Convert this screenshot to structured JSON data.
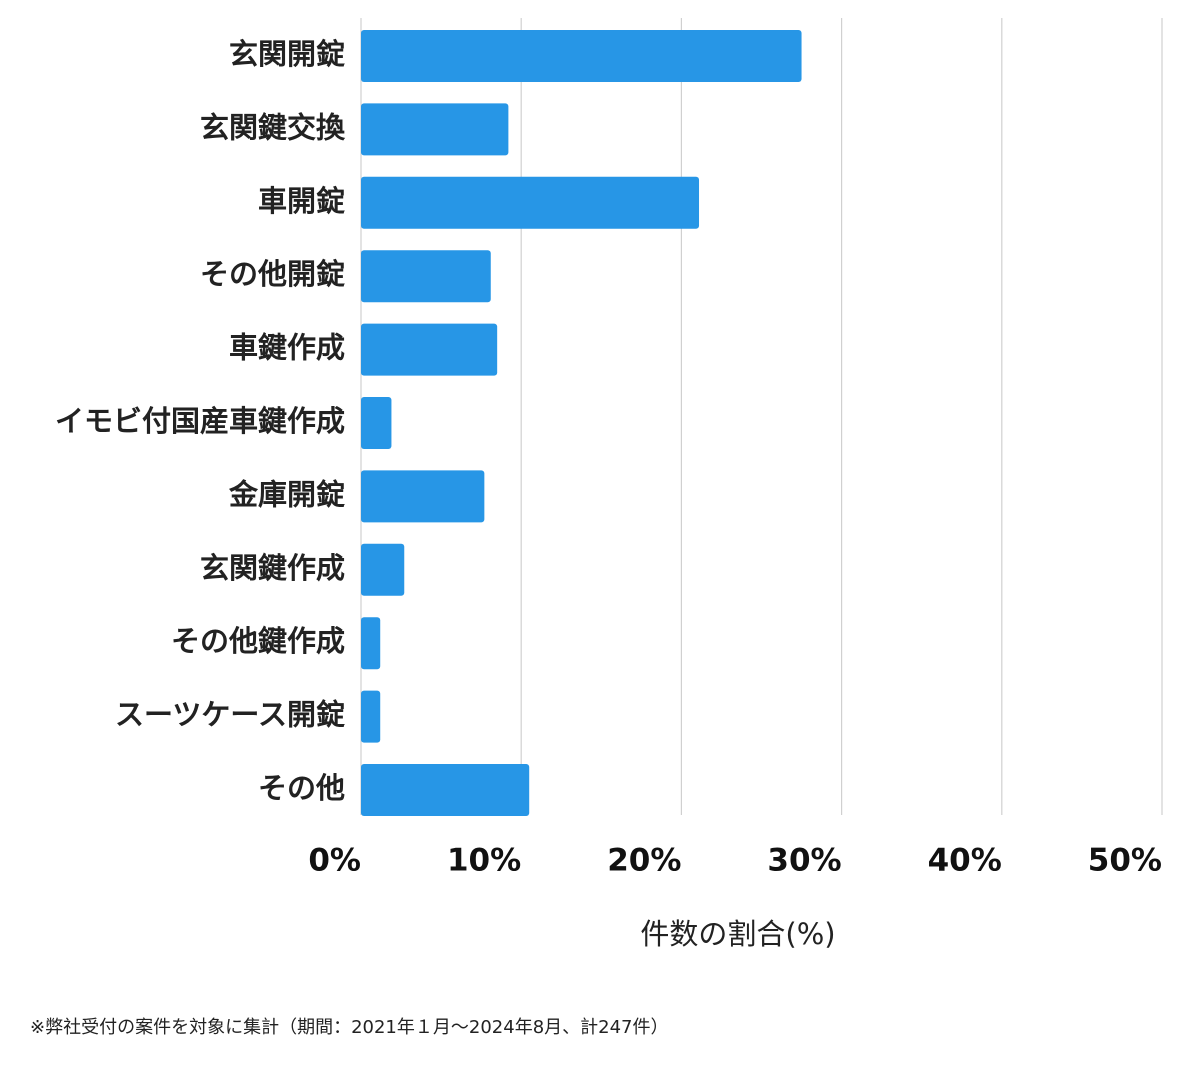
{
  "chart_data": {
    "type": "bar",
    "orientation": "horizontal",
    "categories": [
      "玄関開錠",
      "玄関鍵交換",
      "車開錠",
      "その他開錠",
      "車鍵作成",
      "イモビ付国産車鍵作成",
      "金庫開錠",
      "玄関鍵作成",
      "その他鍵作成",
      "スーツケース開錠",
      "その他"
    ],
    "values": [
      27.5,
      9.2,
      21.1,
      8.1,
      8.5,
      1.9,
      7.7,
      2.7,
      1.2,
      1.2,
      10.5
    ],
    "color": "#2796e6",
    "xlim": [
      0,
      50
    ],
    "xticks": [
      {
        "value": 0,
        "label": "0%"
      },
      {
        "value": 10,
        "label": "10%"
      },
      {
        "value": 20,
        "label": "20%"
      },
      {
        "value": 30,
        "label": "30%"
      },
      {
        "value": 40,
        "label": "40%"
      },
      {
        "value": 50,
        "label": "50%"
      }
    ],
    "xlabel": "件数の割合(%)",
    "grid": true,
    "note": "※弊社受付の案件を対象に集計（期間：2021年１月～2024年8月、計247件）"
  }
}
